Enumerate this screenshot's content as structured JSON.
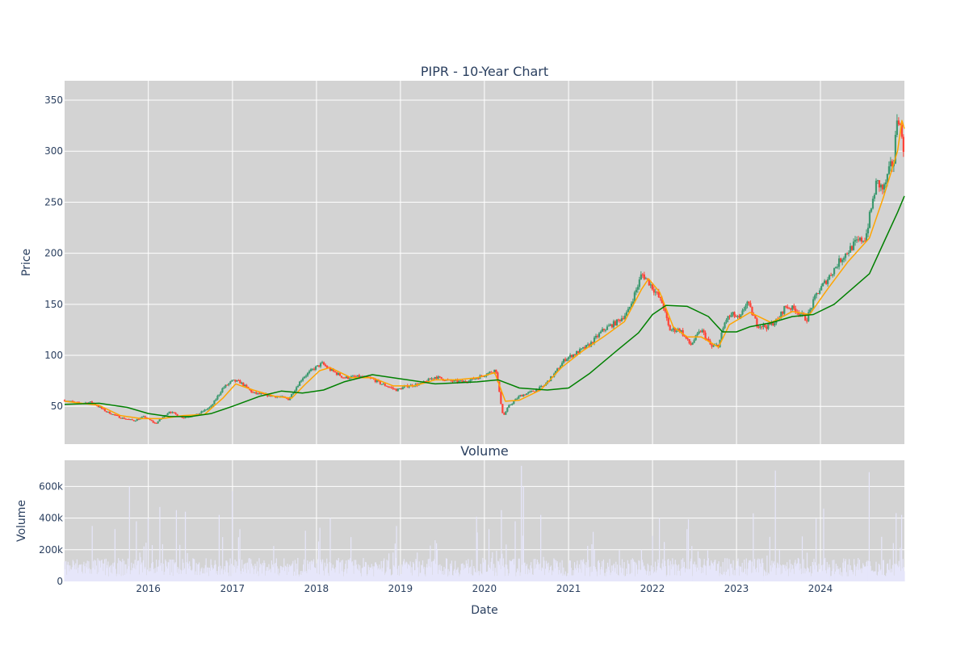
{
  "chart_data": [
    {
      "type": "candlestick",
      "title": "PIPR - 10-Year Chart",
      "xlabel": "",
      "ylabel": "Price",
      "ylim": [
        13,
        369
      ],
      "xlim": [
        "2015-01-02",
        "2024-12-31"
      ],
      "grid": true,
      "y_ticks": [
        50,
        100,
        150,
        200,
        250,
        300,
        350
      ],
      "colors": {
        "increasing": "#3d9970",
        "decreasing": "#ff4136",
        "ma_short": "#ffa500",
        "ma_long": "#008000",
        "background": "#d3d3d3",
        "grid": "#ffffff"
      },
      "price_path": [
        [
          "2015-01-02",
          56
        ],
        [
          "2015-03-01",
          53
        ],
        [
          "2015-05-01",
          54
        ],
        [
          "2015-07-01",
          45
        ],
        [
          "2015-09-01",
          39
        ],
        [
          "2015-11-01",
          36
        ],
        [
          "2015-12-15",
          40
        ],
        [
          "2016-02-01",
          33
        ],
        [
          "2016-04-01",
          45
        ],
        [
          "2016-06-01",
          39
        ],
        [
          "2016-08-01",
          42
        ],
        [
          "2016-10-01",
          50
        ],
        [
          "2016-11-20",
          68
        ],
        [
          "2017-01-01",
          75
        ],
        [
          "2017-02-01",
          74
        ],
        [
          "2017-04-01",
          63
        ],
        [
          "2017-06-01",
          61
        ],
        [
          "2017-08-01",
          59
        ],
        [
          "2017-09-01",
          57
        ],
        [
          "2017-11-01",
          78
        ],
        [
          "2017-12-15",
          86
        ],
        [
          "2018-01-25",
          92
        ],
        [
          "2018-03-01",
          86
        ],
        [
          "2018-05-01",
          78
        ],
        [
          "2018-07-01",
          79
        ],
        [
          "2018-09-01",
          77
        ],
        [
          "2018-10-01",
          73
        ],
        [
          "2018-12-15",
          66
        ],
        [
          "2019-02-01",
          70
        ],
        [
          "2019-04-01",
          72
        ],
        [
          "2019-06-01",
          79
        ],
        [
          "2019-08-01",
          75
        ],
        [
          "2019-10-01",
          74
        ],
        [
          "2019-12-01",
          78
        ],
        [
          "2020-02-01",
          84
        ],
        [
          "2020-02-20",
          86
        ],
        [
          "2020-03-10",
          57
        ],
        [
          "2020-03-23",
          40
        ],
        [
          "2020-04-15",
          50
        ],
        [
          "2020-06-01",
          60
        ],
        [
          "2020-08-01",
          65
        ],
        [
          "2020-09-15",
          70
        ],
        [
          "2020-11-01",
          82
        ],
        [
          "2020-12-15",
          96
        ],
        [
          "2021-02-01",
          102
        ],
        [
          "2021-04-01",
          110
        ],
        [
          "2021-06-01",
          125
        ],
        [
          "2021-08-01",
          133
        ],
        [
          "2021-09-15",
          142
        ],
        [
          "2021-11-01",
          170
        ],
        [
          "2021-11-15",
          180
        ],
        [
          "2021-12-15",
          172
        ],
        [
          "2022-01-20",
          160
        ],
        [
          "2022-02-15",
          150
        ],
        [
          "2022-03-15",
          125
        ],
        [
          "2022-05-01",
          125
        ],
        [
          "2022-06-15",
          110
        ],
        [
          "2022-08-01",
          125
        ],
        [
          "2022-09-15",
          108
        ],
        [
          "2022-10-15",
          110
        ],
        [
          "2022-11-15",
          135
        ],
        [
          "2022-12-15",
          140
        ],
        [
          "2023-01-15",
          135
        ],
        [
          "2023-02-15",
          153
        ],
        [
          "2023-04-01",
          130
        ],
        [
          "2023-05-15",
          128
        ],
        [
          "2023-07-01",
          135
        ],
        [
          "2023-08-01",
          148
        ],
        [
          "2023-09-15",
          145
        ],
        [
          "2023-11-01",
          135
        ],
        [
          "2023-12-15",
          160
        ],
        [
          "2024-02-01",
          175
        ],
        [
          "2024-04-01",
          195
        ],
        [
          "2024-06-01",
          210
        ],
        [
          "2024-07-15",
          215
        ],
        [
          "2024-08-01",
          235
        ],
        [
          "2024-09-01",
          270
        ],
        [
          "2024-10-01",
          262
        ],
        [
          "2024-11-01",
          285
        ],
        [
          "2024-11-15",
          290
        ],
        [
          "2024-12-01",
          340
        ],
        [
          "2024-12-15",
          320
        ],
        [
          "2024-12-31",
          300
        ]
      ],
      "ma_short_path": [
        [
          "2015-01-02",
          55
        ],
        [
          "2015-06-01",
          51
        ],
        [
          "2015-09-01",
          41
        ],
        [
          "2015-12-01",
          38
        ],
        [
          "2016-03-01",
          38
        ],
        [
          "2016-06-01",
          41
        ],
        [
          "2016-09-01",
          42
        ],
        [
          "2016-11-20",
          58
        ],
        [
          "2017-01-15",
          72
        ],
        [
          "2017-04-01",
          66
        ],
        [
          "2017-07-01",
          60
        ],
        [
          "2017-09-15",
          58
        ],
        [
          "2017-11-15",
          72
        ],
        [
          "2018-01-15",
          85
        ],
        [
          "2018-03-01",
          88
        ],
        [
          "2018-06-01",
          78
        ],
        [
          "2018-09-01",
          78
        ],
        [
          "2018-12-01",
          70
        ],
        [
          "2019-03-01",
          70
        ],
        [
          "2019-06-01",
          76
        ],
        [
          "2019-09-01",
          76
        ],
        [
          "2019-12-01",
          78
        ],
        [
          "2020-02-15",
          83
        ],
        [
          "2020-04-01",
          55
        ],
        [
          "2020-06-01",
          56
        ],
        [
          "2020-09-01",
          66
        ],
        [
          "2020-12-01",
          88
        ],
        [
          "2021-03-01",
          104
        ],
        [
          "2021-06-01",
          118
        ],
        [
          "2021-09-01",
          133
        ],
        [
          "2021-11-15",
          165
        ],
        [
          "2021-12-15",
          175
        ],
        [
          "2022-02-01",
          162
        ],
        [
          "2022-04-01",
          128
        ],
        [
          "2022-06-01",
          118
        ],
        [
          "2022-08-01",
          118
        ],
        [
          "2022-10-15",
          108
        ],
        [
          "2022-12-01",
          130
        ],
        [
          "2023-03-01",
          142
        ],
        [
          "2023-06-01",
          132
        ],
        [
          "2023-09-01",
          143
        ],
        [
          "2023-11-15",
          140
        ],
        [
          "2024-02-01",
          165
        ],
        [
          "2024-05-01",
          192
        ],
        [
          "2024-08-01",
          215
        ],
        [
          "2024-10-01",
          255
        ],
        [
          "2024-12-01",
          300
        ],
        [
          "2024-12-20",
          330
        ],
        [
          "2024-12-31",
          322
        ]
      ],
      "ma_long_path": [
        [
          "2015-01-02",
          52
        ],
        [
          "2015-06-01",
          53
        ],
        [
          "2015-10-01",
          49
        ],
        [
          "2016-01-01",
          43
        ],
        [
          "2016-04-01",
          40
        ],
        [
          "2016-07-01",
          40
        ],
        [
          "2016-10-01",
          43
        ],
        [
          "2017-01-01",
          50
        ],
        [
          "2017-05-01",
          60
        ],
        [
          "2017-08-01",
          65
        ],
        [
          "2017-11-01",
          63
        ],
        [
          "2018-02-01",
          66
        ],
        [
          "2018-05-01",
          74
        ],
        [
          "2018-09-01",
          81
        ],
        [
          "2019-01-01",
          77
        ],
        [
          "2019-06-01",
          72
        ],
        [
          "2019-12-01",
          74
        ],
        [
          "2020-03-01",
          76
        ],
        [
          "2020-06-01",
          68
        ],
        [
          "2020-10-01",
          66
        ],
        [
          "2021-01-01",
          68
        ],
        [
          "2021-04-01",
          82
        ],
        [
          "2021-08-01",
          105
        ],
        [
          "2021-11-01",
          122
        ],
        [
          "2022-01-01",
          140
        ],
        [
          "2022-03-01",
          149
        ],
        [
          "2022-06-01",
          148
        ],
        [
          "2022-09-01",
          138
        ],
        [
          "2022-11-01",
          123
        ],
        [
          "2023-01-01",
          123
        ],
        [
          "2023-03-01",
          128
        ],
        [
          "2023-06-01",
          132
        ],
        [
          "2023-09-01",
          138
        ],
        [
          "2023-12-01",
          140
        ],
        [
          "2024-03-01",
          150
        ],
        [
          "2024-06-01",
          168
        ],
        [
          "2024-08-01",
          180
        ],
        [
          "2024-10-01",
          210
        ],
        [
          "2024-12-01",
          240
        ],
        [
          "2024-12-31",
          256
        ]
      ]
    },
    {
      "type": "bar",
      "title": "Volume",
      "xlabel": "Date",
      "ylabel": "Volume",
      "ylim": [
        0,
        765000
      ],
      "y_ticks": [
        0,
        200000,
        400000,
        600000
      ],
      "y_tick_labels": [
        "0",
        "200k",
        "400k",
        "600k"
      ],
      "x_ticks": [
        "2016",
        "2017",
        "2018",
        "2019",
        "2020",
        "2021",
        "2022",
        "2023",
        "2024"
      ],
      "bar_color": "#e6e6fa",
      "typical_volume": 90000,
      "volume_spikes": [
        [
          "2015-05-01",
          350000
        ],
        [
          "2015-10-10",
          600000
        ],
        [
          "2015-11-10",
          380000
        ],
        [
          "2016-01-01",
          400000
        ],
        [
          "2016-02-20",
          470000
        ],
        [
          "2016-05-01",
          450000
        ],
        [
          "2016-06-10",
          440000
        ],
        [
          "2016-11-20",
          280000
        ],
        [
          "2017-01-01",
          570000
        ],
        [
          "2017-02-01",
          330000
        ],
        [
          "2017-11-15",
          320000
        ],
        [
          "2018-03-01",
          400000
        ],
        [
          "2018-12-15",
          350000
        ],
        [
          "2019-06-01",
          260000
        ],
        [
          "2020-01-20",
          330000
        ],
        [
          "2020-03-15",
          450000
        ],
        [
          "2020-05-15",
          380000
        ],
        [
          "2020-06-10",
          730000
        ],
        [
          "2020-06-20",
          600000
        ],
        [
          "2020-09-01",
          420000
        ],
        [
          "2022-02-01",
          400000
        ],
        [
          "2022-06-01",
          330000
        ],
        [
          "2023-03-15",
          430000
        ],
        [
          "2023-06-20",
          700000
        ],
        [
          "2024-01-15",
          460000
        ],
        [
          "2024-08-01",
          690000
        ],
        [
          "2024-12-20",
          420000
        ]
      ]
    }
  ]
}
